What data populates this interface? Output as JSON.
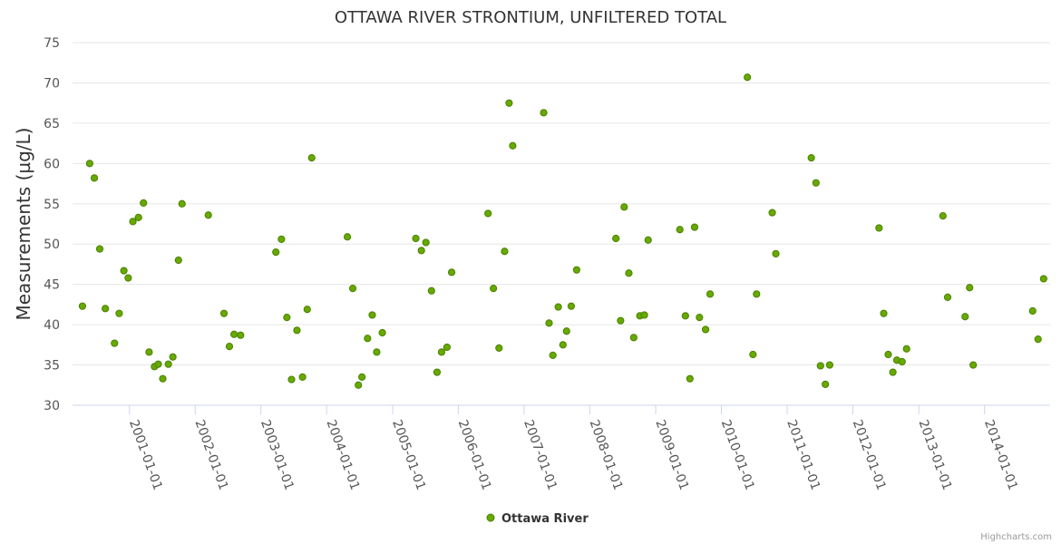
{
  "chart_data": {
    "type": "scatter",
    "title": "OTTAWA RIVER STRONTIUM, UNFILTERED TOTAL",
    "ylabel": "Measurements (µg/L)",
    "xlabel": "",
    "ylim": [
      30,
      75
    ],
    "yticks": [
      30,
      35,
      40,
      45,
      50,
      55,
      60,
      65,
      70,
      75
    ],
    "xlim": [
      "2000-02-20",
      "2014-12-31"
    ],
    "xticks": [
      "2001-01-01",
      "2002-01-01",
      "2003-01-01",
      "2004-01-01",
      "2005-01-01",
      "2006-01-01",
      "2007-01-01",
      "2008-01-01",
      "2009-01-01",
      "2010-01-01",
      "2011-01-01",
      "2012-01-01",
      "2013-01-01",
      "2014-01-01"
    ],
    "grid": "horizontal",
    "legend_position": "bottom-center",
    "marker_color": "#66aa00",
    "marker_border": "#4c7f00",
    "series": [
      {
        "name": "Ottawa River",
        "points": [
          [
            "2000-04-15",
            42.3
          ],
          [
            "2000-05-25",
            60.0
          ],
          [
            "2000-06-20",
            58.2
          ],
          [
            "2000-07-20",
            49.4
          ],
          [
            "2000-08-20",
            42.0
          ],
          [
            "2000-10-10",
            37.7
          ],
          [
            "2000-11-05",
            41.4
          ],
          [
            "2000-12-01",
            46.7
          ],
          [
            "2000-12-25",
            45.8
          ],
          [
            "2001-01-20",
            52.8
          ],
          [
            "2001-02-20",
            53.3
          ],
          [
            "2001-03-20",
            55.1
          ],
          [
            "2001-04-20",
            36.6
          ],
          [
            "2001-05-20",
            34.8
          ],
          [
            "2001-06-10",
            35.1
          ],
          [
            "2001-07-05",
            33.3
          ],
          [
            "2001-08-05",
            35.1
          ],
          [
            "2001-08-30",
            36.0
          ],
          [
            "2001-09-30",
            48.0
          ],
          [
            "2001-10-20",
            55.0
          ],
          [
            "2002-03-15",
            53.6
          ],
          [
            "2002-06-10",
            41.4
          ],
          [
            "2002-07-10",
            37.3
          ],
          [
            "2002-08-05",
            38.8
          ],
          [
            "2002-09-10",
            38.7
          ],
          [
            "2003-03-25",
            49.0
          ],
          [
            "2003-04-25",
            50.6
          ],
          [
            "2003-05-25",
            40.9
          ],
          [
            "2003-06-20",
            33.2
          ],
          [
            "2003-07-20",
            39.3
          ],
          [
            "2003-08-20",
            33.5
          ],
          [
            "2003-09-15",
            41.9
          ],
          [
            "2003-10-10",
            60.7
          ],
          [
            "2004-04-25",
            50.9
          ],
          [
            "2004-05-25",
            44.5
          ],
          [
            "2004-06-25",
            32.5
          ],
          [
            "2004-07-15",
            33.5
          ],
          [
            "2004-08-15",
            38.3
          ],
          [
            "2004-09-10",
            41.2
          ],
          [
            "2004-10-05",
            36.6
          ],
          [
            "2004-11-05",
            39.0
          ],
          [
            "2005-05-10",
            50.7
          ],
          [
            "2005-06-10",
            49.2
          ],
          [
            "2005-07-05",
            50.2
          ],
          [
            "2005-08-05",
            44.2
          ],
          [
            "2005-09-05",
            34.1
          ],
          [
            "2005-09-30",
            36.6
          ],
          [
            "2005-10-30",
            37.2
          ],
          [
            "2005-11-25",
            46.5
          ],
          [
            "2006-06-15",
            53.8
          ],
          [
            "2006-07-15",
            44.5
          ],
          [
            "2006-08-15",
            37.1
          ],
          [
            "2006-09-15",
            49.1
          ],
          [
            "2006-10-10",
            67.5
          ],
          [
            "2006-10-30",
            62.2
          ],
          [
            "2007-04-20",
            66.3
          ],
          [
            "2007-05-20",
            40.2
          ],
          [
            "2007-06-10",
            36.2
          ],
          [
            "2007-07-10",
            42.2
          ],
          [
            "2007-08-05",
            37.5
          ],
          [
            "2007-08-25",
            39.2
          ],
          [
            "2007-09-20",
            42.3
          ],
          [
            "2007-10-20",
            46.8
          ],
          [
            "2008-05-25",
            50.7
          ],
          [
            "2008-06-20",
            40.5
          ],
          [
            "2008-07-10",
            54.6
          ],
          [
            "2008-08-05",
            46.4
          ],
          [
            "2008-09-01",
            38.4
          ],
          [
            "2008-10-05",
            41.1
          ],
          [
            "2008-10-30",
            41.2
          ],
          [
            "2008-11-20",
            50.5
          ],
          [
            "2009-05-15",
            51.8
          ],
          [
            "2009-06-15",
            41.1
          ],
          [
            "2009-07-10",
            33.3
          ],
          [
            "2009-08-05",
            52.1
          ],
          [
            "2009-09-01",
            40.9
          ],
          [
            "2009-10-05",
            39.4
          ],
          [
            "2009-10-30",
            43.8
          ],
          [
            "2010-05-25",
            70.7
          ],
          [
            "2010-06-25",
            36.3
          ],
          [
            "2010-07-15",
            43.8
          ],
          [
            "2010-10-10",
            53.9
          ],
          [
            "2010-10-30",
            48.8
          ],
          [
            "2011-05-15",
            60.7
          ],
          [
            "2011-06-10",
            57.6
          ],
          [
            "2011-07-05",
            34.9
          ],
          [
            "2011-08-01",
            32.6
          ],
          [
            "2011-08-25",
            35.0
          ],
          [
            "2012-05-25",
            52.0
          ],
          [
            "2012-06-20",
            41.4
          ],
          [
            "2012-07-15",
            36.3
          ],
          [
            "2012-08-10",
            34.1
          ],
          [
            "2012-09-01",
            35.6
          ],
          [
            "2012-09-30",
            35.4
          ],
          [
            "2012-10-25",
            37.0
          ],
          [
            "2013-05-15",
            53.5
          ],
          [
            "2013-06-10",
            43.4
          ],
          [
            "2013-09-15",
            41.0
          ],
          [
            "2013-10-10",
            44.6
          ],
          [
            "2013-10-30",
            35.0
          ],
          [
            "2014-09-25",
            41.7
          ],
          [
            "2014-10-25",
            38.2
          ],
          [
            "2014-11-25",
            45.7
          ]
        ]
      }
    ]
  },
  "credits": "Highcharts.com"
}
